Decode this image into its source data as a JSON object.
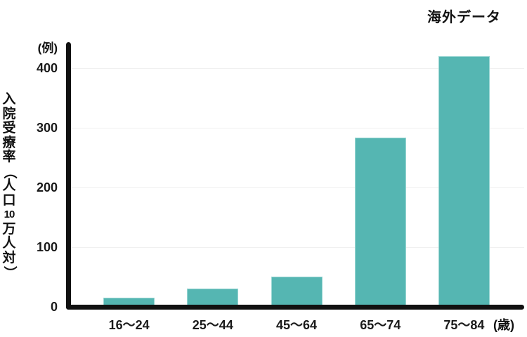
{
  "title": "海外データ",
  "chart_data": {
    "type": "bar",
    "title": "海外データ",
    "categories": [
      "16〜24",
      "25〜44",
      "45〜64",
      "65〜74",
      "75〜84"
    ],
    "values": [
      15,
      30,
      50,
      283,
      420
    ],
    "xlabel": "(歳)",
    "ylabel": "入院受療率（人口10万人対）",
    "y_unit": "(例)",
    "ylim": [
      0,
      440
    ],
    "yticks": [
      400,
      300,
      200,
      100,
      0
    ],
    "legend": "none",
    "grid": "horizontal-faint",
    "colors": {
      "bar_fill": "#55b6b2",
      "bar_edge": "#9ad6d3",
      "axis": "#111111",
      "grid": "#f0f0f0",
      "text": "#111111"
    }
  }
}
